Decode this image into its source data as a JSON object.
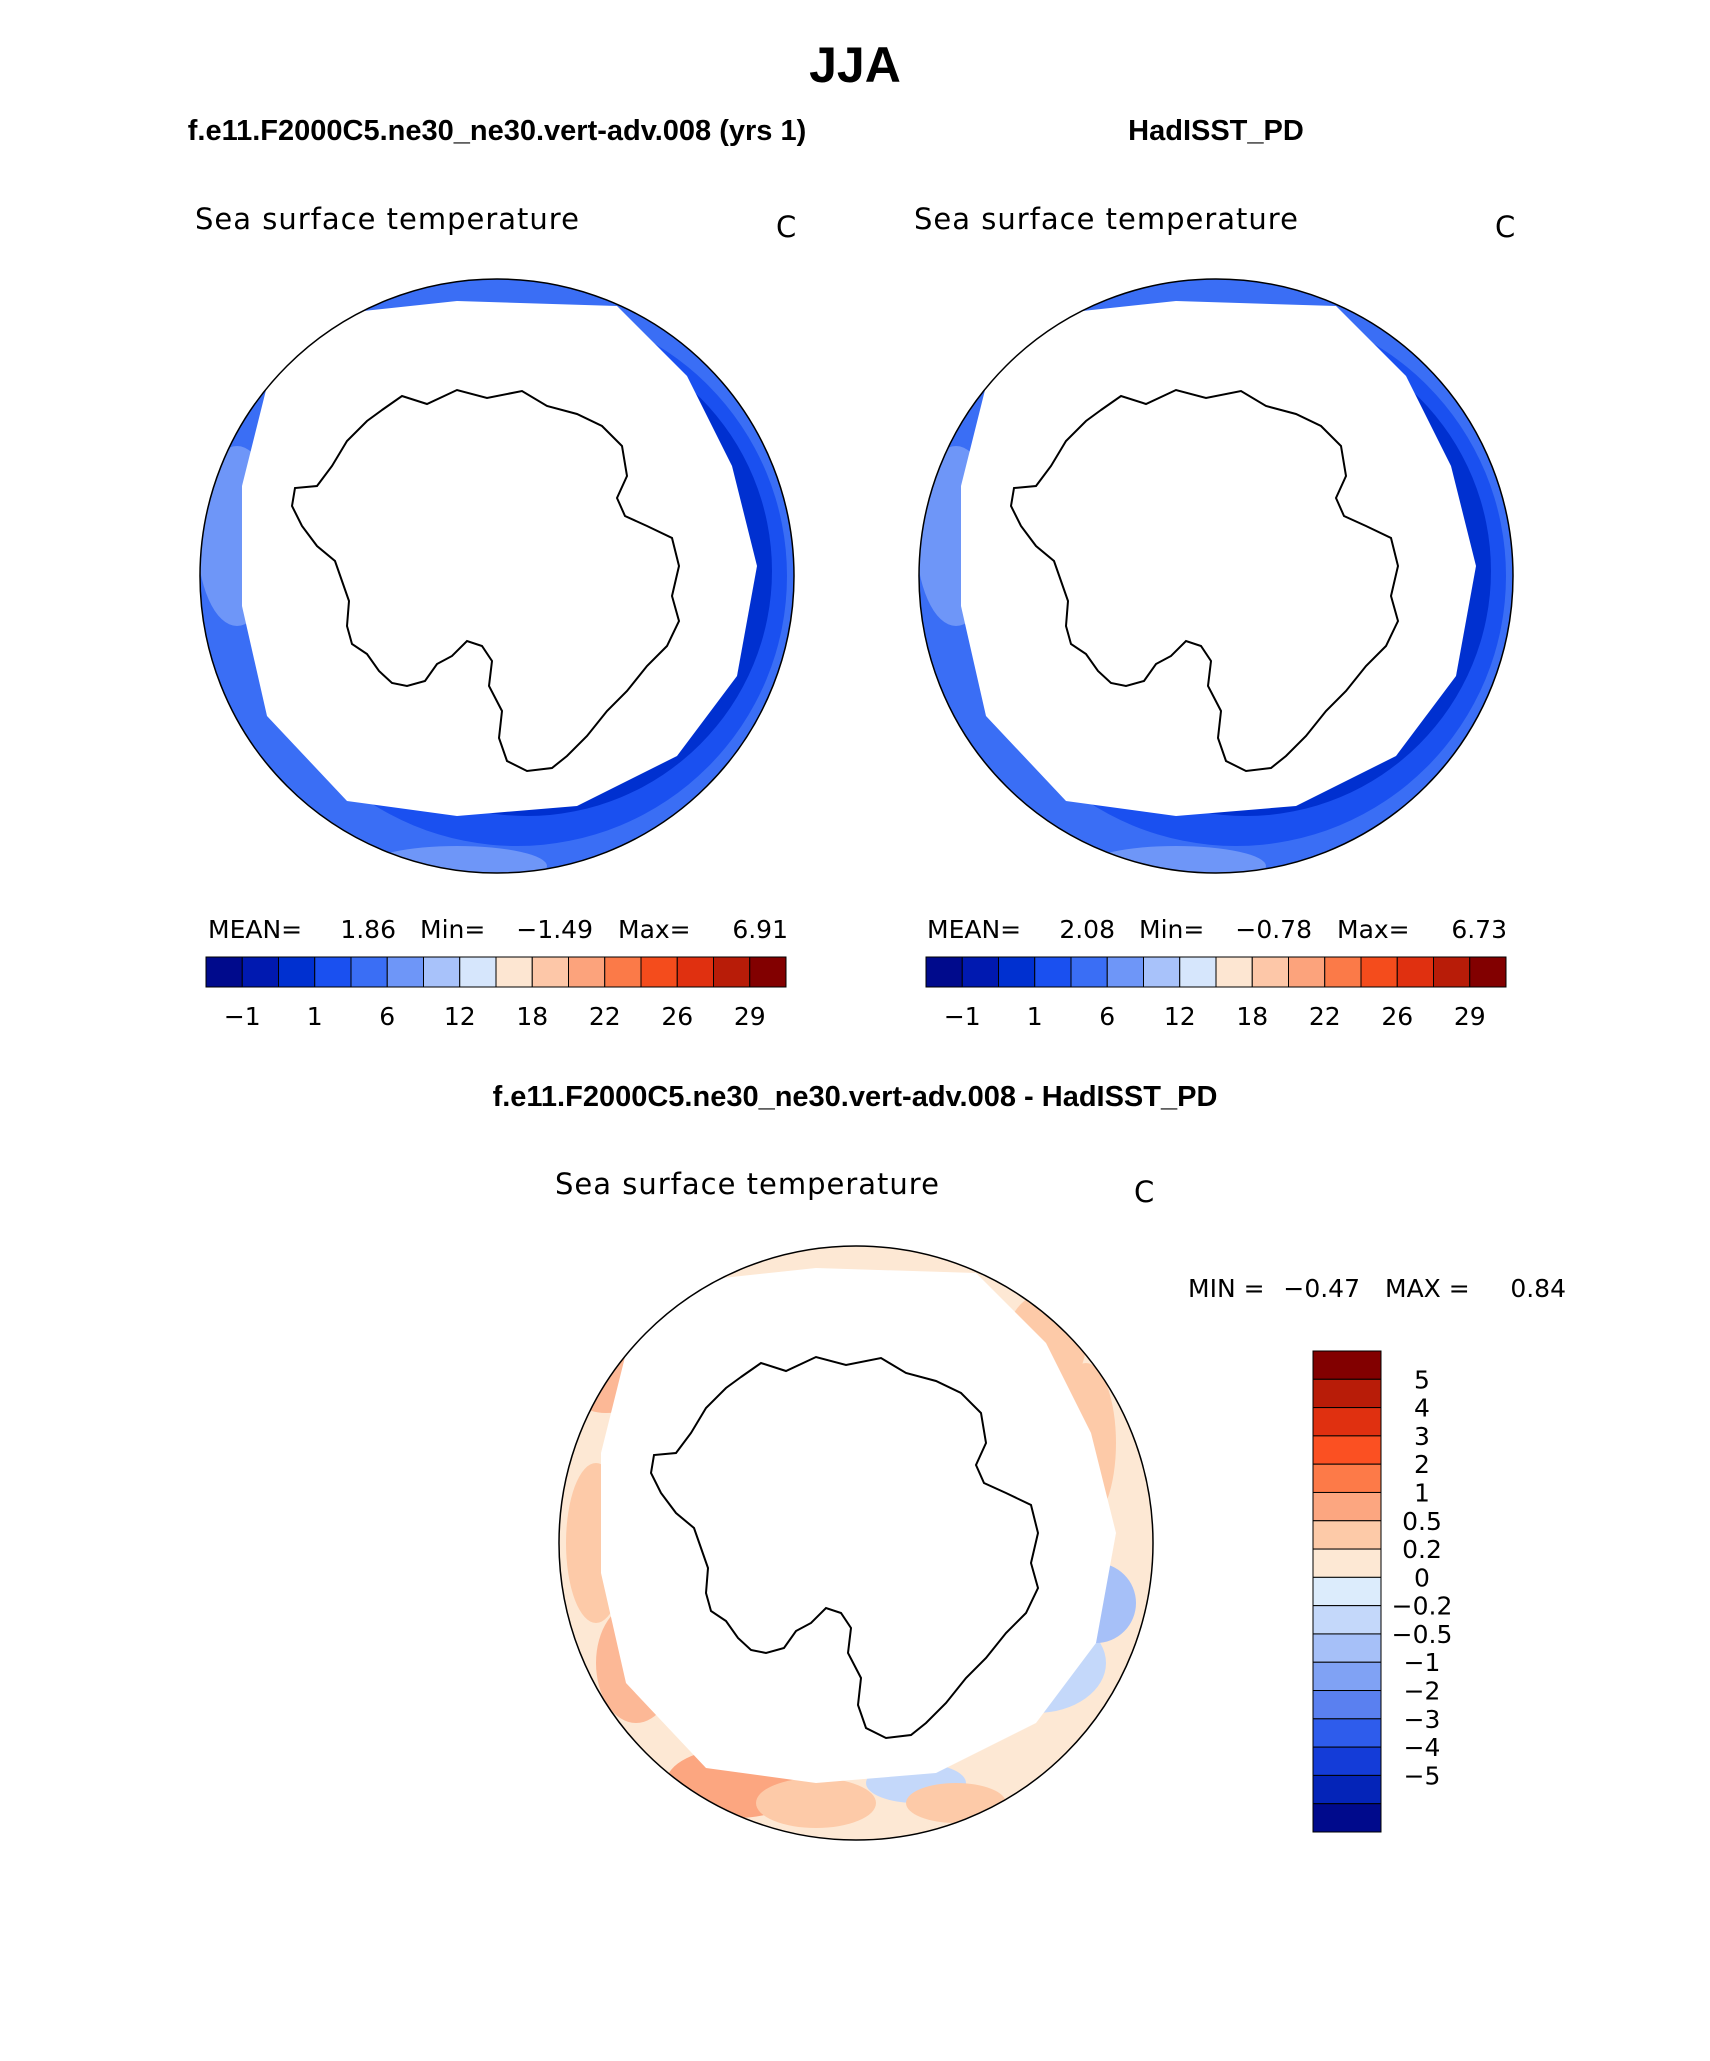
{
  "title": "JJA",
  "panels": {
    "model": {
      "heading": "f.e11.F2000C5.ne30_ne30.vert-adv.008 (yrs 1)",
      "variable": "Sea surface temperature",
      "units": "C",
      "stats": {
        "mean_label": "MEAN=",
        "mean": "1.86",
        "min_label": "Min=",
        "min": "−1.49",
        "max_label": "Max=",
        "max": "6.91"
      }
    },
    "obs": {
      "heading": "HadISST_PD",
      "variable": "Sea surface temperature",
      "units": "C",
      "stats": {
        "mean_label": "MEAN=",
        "mean": "2.08",
        "min_label": "Min=",
        "min": "−0.78",
        "max_label": "Max=",
        "max": "6.73"
      }
    },
    "diff": {
      "heading": "f.e11.F2000C5.ne30_ne30.vert-adv.008 - HadISST_PD",
      "variable": "Sea surface temperature",
      "units": "C",
      "stats": {
        "min_label": "MIN =",
        "min": "−0.47",
        "max_label": "MAX =",
        "max": "0.84"
      }
    }
  },
  "abs_colorbar": {
    "colors": [
      "#000a8c",
      "#0019b0",
      "#0030d0",
      "#1a50f0",
      "#3a6ef5",
      "#6e96f8",
      "#a8c2fa",
      "#d6e6fc",
      "#fde6d2",
      "#fdc7a8",
      "#fca37c",
      "#fb7a48",
      "#f44c1c",
      "#e03010",
      "#b81c08",
      "#820000"
    ],
    "ticks": [
      "−1",
      "1",
      "6",
      "12",
      "18",
      "22",
      "26",
      "29"
    ]
  },
  "diff_colorbar": {
    "colors": [
      "#820000",
      "#b81c08",
      "#e03010",
      "#fb5022",
      "#fd7a48",
      "#fca680",
      "#fdcaa8",
      "#fde8d4",
      "#dcecfc",
      "#c4d8fa",
      "#a6c0f8",
      "#80a2f4",
      "#5a80f0",
      "#2e5cec",
      "#143cd8",
      "#0424b8",
      "#000a8c"
    ],
    "labels": [
      "5",
      "4",
      "3",
      "2",
      "1",
      "0.5",
      "0.2",
      "0",
      "−0.2",
      "−0.5",
      "−1",
      "−2",
      "−3",
      "−4",
      "−5"
    ]
  }
}
